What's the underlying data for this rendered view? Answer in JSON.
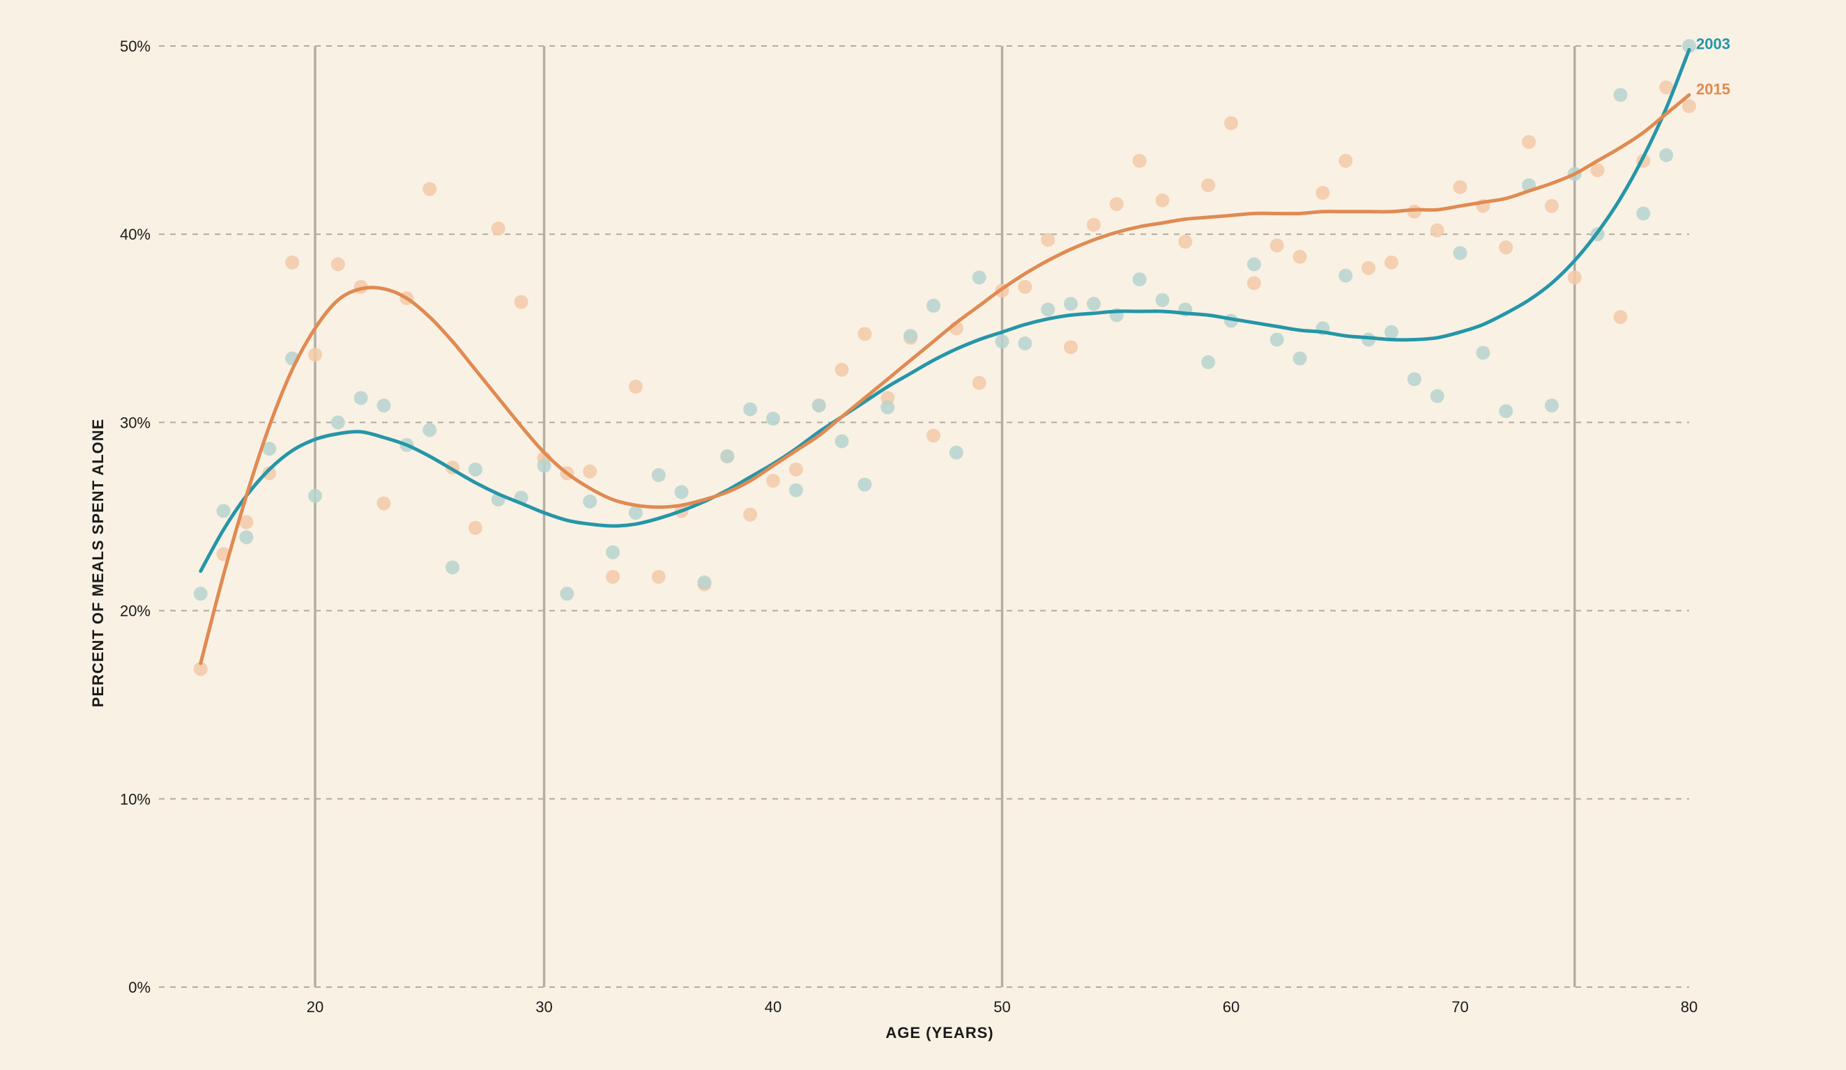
{
  "chart_data": {
    "type": "scatter",
    "title": "",
    "xlabel": "AGE (YEARS)",
    "ylabel": "PERCENT OF MEALS SPENT ALONE",
    "xlim": [
      12.5,
      80
    ],
    "ylim": [
      0,
      50
    ],
    "x_ticks": [
      20,
      30,
      40,
      50,
      60,
      70,
      80
    ],
    "y_ticks": [
      0,
      10,
      20,
      30,
      40,
      50
    ],
    "y_tick_labels": [
      "0%",
      "10%",
      "20%",
      "30%",
      "40%",
      "50%"
    ],
    "reference_lines_x": [
      20,
      30,
      50,
      75
    ],
    "grid": "horizontal dashed",
    "legend": "direct labels at right end of lines",
    "series": [
      {
        "name": "2003",
        "color": "#2596a8",
        "point_color": "#b7d3cf",
        "points": [
          [
            15,
            20.9
          ],
          [
            16,
            25.3
          ],
          [
            17,
            23.9
          ],
          [
            18,
            28.6
          ],
          [
            19,
            33.4
          ],
          [
            20,
            26.1
          ],
          [
            21,
            30.0
          ],
          [
            22,
            31.3
          ],
          [
            23,
            30.9
          ],
          [
            24,
            28.8
          ],
          [
            25,
            29.6
          ],
          [
            26,
            22.3
          ],
          [
            27,
            27.5
          ],
          [
            28,
            25.9
          ],
          [
            29,
            26.0
          ],
          [
            30,
            27.7
          ],
          [
            31,
            20.9
          ],
          [
            32,
            25.8
          ],
          [
            33,
            23.1
          ],
          [
            34,
            25.2
          ],
          [
            35,
            27.2
          ],
          [
            36,
            26.3
          ],
          [
            37,
            21.5
          ],
          [
            38,
            28.2
          ],
          [
            39,
            30.7
          ],
          [
            40,
            30.2
          ],
          [
            41,
            26.4
          ],
          [
            42,
            30.9
          ],
          [
            43,
            29.0
          ],
          [
            44,
            26.7
          ],
          [
            45,
            30.8
          ],
          [
            46,
            34.6
          ],
          [
            47,
            36.2
          ],
          [
            48,
            28.4
          ],
          [
            49,
            37.7
          ],
          [
            50,
            34.3
          ],
          [
            51,
            34.2
          ],
          [
            52,
            36.0
          ],
          [
            53,
            36.3
          ],
          [
            54,
            36.3
          ],
          [
            55,
            35.7
          ],
          [
            56,
            37.6
          ],
          [
            57,
            36.5
          ],
          [
            58,
            36.0
          ],
          [
            59,
            33.2
          ],
          [
            60,
            35.4
          ],
          [
            61,
            38.4
          ],
          [
            62,
            34.4
          ],
          [
            63,
            33.4
          ],
          [
            64,
            35.0
          ],
          [
            65,
            37.8
          ],
          [
            66,
            34.4
          ],
          [
            67,
            34.8
          ],
          [
            68,
            32.3
          ],
          [
            69,
            31.4
          ],
          [
            70,
            39.0
          ],
          [
            71,
            33.7
          ],
          [
            72,
            30.6
          ],
          [
            73,
            42.6
          ],
          [
            74,
            30.9
          ],
          [
            75,
            43.2
          ],
          [
            76,
            40.0
          ],
          [
            77,
            47.4
          ],
          [
            78,
            41.1
          ],
          [
            79,
            44.2
          ],
          [
            80,
            50.0
          ]
        ],
        "trend": [
          [
            15,
            22.1
          ],
          [
            16,
            24.3
          ],
          [
            17,
            26.1
          ],
          [
            18,
            27.5
          ],
          [
            19,
            28.5
          ],
          [
            20,
            29.1
          ],
          [
            21,
            29.4
          ],
          [
            22,
            29.5
          ],
          [
            23,
            29.2
          ],
          [
            24,
            28.8
          ],
          [
            25,
            28.2
          ],
          [
            26,
            27.5
          ],
          [
            27,
            26.8
          ],
          [
            28,
            26.2
          ],
          [
            29,
            25.7
          ],
          [
            30,
            25.2
          ],
          [
            31,
            24.8
          ],
          [
            32,
            24.6
          ],
          [
            33,
            24.5
          ],
          [
            34,
            24.6
          ],
          [
            35,
            24.9
          ],
          [
            36,
            25.3
          ],
          [
            37,
            25.8
          ],
          [
            38,
            26.4
          ],
          [
            39,
            27.1
          ],
          [
            40,
            27.8
          ],
          [
            41,
            28.6
          ],
          [
            42,
            29.5
          ],
          [
            43,
            30.3
          ],
          [
            44,
            31.1
          ],
          [
            45,
            31.9
          ],
          [
            46,
            32.6
          ],
          [
            47,
            33.3
          ],
          [
            48,
            33.9
          ],
          [
            49,
            34.4
          ],
          [
            50,
            34.8
          ],
          [
            51,
            35.2
          ],
          [
            52,
            35.5
          ],
          [
            53,
            35.7
          ],
          [
            54,
            35.8
          ],
          [
            55,
            35.9
          ],
          [
            56,
            35.9
          ],
          [
            57,
            35.9
          ],
          [
            58,
            35.8
          ],
          [
            59,
            35.7
          ],
          [
            60,
            35.5
          ],
          [
            61,
            35.3
          ],
          [
            62,
            35.1
          ],
          [
            63,
            34.9
          ],
          [
            64,
            34.8
          ],
          [
            65,
            34.6
          ],
          [
            66,
            34.5
          ],
          [
            67,
            34.4
          ],
          [
            68,
            34.4
          ],
          [
            69,
            34.5
          ],
          [
            70,
            34.8
          ],
          [
            71,
            35.2
          ],
          [
            72,
            35.8
          ],
          [
            73,
            36.5
          ],
          [
            74,
            37.4
          ],
          [
            75,
            38.6
          ],
          [
            76,
            40.1
          ],
          [
            77,
            41.9
          ],
          [
            78,
            44.1
          ],
          [
            79,
            46.7
          ],
          [
            80,
            49.8
          ]
        ]
      },
      {
        "name": "2015",
        "color": "#e08a52",
        "point_color": "#f3c9a8",
        "points": [
          [
            15,
            16.9
          ],
          [
            16,
            23.0
          ],
          [
            17,
            24.7
          ],
          [
            18,
            27.3
          ],
          [
            19,
            38.5
          ],
          [
            20,
            33.6
          ],
          [
            21,
            38.4
          ],
          [
            22,
            37.2
          ],
          [
            23,
            25.7
          ],
          [
            24,
            36.6
          ],
          [
            25,
            42.4
          ],
          [
            26,
            27.6
          ],
          [
            27,
            24.4
          ],
          [
            28,
            40.3
          ],
          [
            29,
            36.4
          ],
          [
            30,
            28.1
          ],
          [
            31,
            27.3
          ],
          [
            32,
            27.4
          ],
          [
            33,
            21.8
          ],
          [
            34,
            31.9
          ],
          [
            35,
            21.8
          ],
          [
            36,
            25.3
          ],
          [
            37,
            21.4
          ],
          [
            38,
            28.2
          ],
          [
            39,
            25.1
          ],
          [
            40,
            26.9
          ],
          [
            41,
            27.5
          ],
          [
            42,
            30.9
          ],
          [
            43,
            32.8
          ],
          [
            44,
            34.7
          ],
          [
            45,
            31.3
          ],
          [
            46,
            34.5
          ],
          [
            47,
            29.3
          ],
          [
            48,
            35.0
          ],
          [
            49,
            32.1
          ],
          [
            50,
            37.0
          ],
          [
            51,
            37.2
          ],
          [
            52,
            39.7
          ],
          [
            53,
            34.0
          ],
          [
            54,
            40.5
          ],
          [
            55,
            41.6
          ],
          [
            56,
            43.9
          ],
          [
            57,
            41.8
          ],
          [
            58,
            39.6
          ],
          [
            59,
            42.6
          ],
          [
            60,
            45.9
          ],
          [
            61,
            37.4
          ],
          [
            62,
            39.4
          ],
          [
            63,
            38.8
          ],
          [
            64,
            42.2
          ],
          [
            65,
            43.9
          ],
          [
            66,
            38.2
          ],
          [
            67,
            38.5
          ],
          [
            68,
            41.2
          ],
          [
            69,
            40.2
          ],
          [
            70,
            42.5
          ],
          [
            71,
            41.5
          ],
          [
            72,
            39.3
          ],
          [
            73,
            44.9
          ],
          [
            74,
            41.5
          ],
          [
            75,
            37.7
          ],
          [
            76,
            43.4
          ],
          [
            77,
            35.6
          ],
          [
            78,
            43.9
          ],
          [
            79,
            47.8
          ],
          [
            80,
            46.8
          ]
        ],
        "trend": [
          [
            15,
            17.2
          ],
          [
            16,
            21.9
          ],
          [
            17,
            26.1
          ],
          [
            18,
            29.8
          ],
          [
            19,
            32.8
          ],
          [
            20,
            35.0
          ],
          [
            21,
            36.5
          ],
          [
            22,
            37.1
          ],
          [
            23,
            37.1
          ],
          [
            24,
            36.6
          ],
          [
            25,
            35.6
          ],
          [
            26,
            34.3
          ],
          [
            27,
            32.8
          ],
          [
            28,
            31.3
          ],
          [
            29,
            29.8
          ],
          [
            30,
            28.4
          ],
          [
            31,
            27.3
          ],
          [
            32,
            26.5
          ],
          [
            33,
            25.9
          ],
          [
            34,
            25.6
          ],
          [
            35,
            25.5
          ],
          [
            36,
            25.6
          ],
          [
            37,
            25.9
          ],
          [
            38,
            26.3
          ],
          [
            39,
            26.9
          ],
          [
            40,
            27.7
          ],
          [
            41,
            28.5
          ],
          [
            42,
            29.3
          ],
          [
            43,
            30.3
          ],
          [
            44,
            31.3
          ],
          [
            45,
            32.3
          ],
          [
            46,
            33.3
          ],
          [
            47,
            34.3
          ],
          [
            48,
            35.3
          ],
          [
            49,
            36.2
          ],
          [
            50,
            37.1
          ],
          [
            51,
            37.9
          ],
          [
            52,
            38.6
          ],
          [
            53,
            39.2
          ],
          [
            54,
            39.7
          ],
          [
            55,
            40.1
          ],
          [
            56,
            40.4
          ],
          [
            57,
            40.6
          ],
          [
            58,
            40.8
          ],
          [
            59,
            40.9
          ],
          [
            60,
            41.0
          ],
          [
            61,
            41.1
          ],
          [
            62,
            41.1
          ],
          [
            63,
            41.1
          ],
          [
            64,
            41.2
          ],
          [
            65,
            41.2
          ],
          [
            66,
            41.2
          ],
          [
            67,
            41.2
          ],
          [
            68,
            41.3
          ],
          [
            69,
            41.3
          ],
          [
            70,
            41.5
          ],
          [
            71,
            41.7
          ],
          [
            72,
            41.9
          ],
          [
            73,
            42.3
          ],
          [
            74,
            42.7
          ],
          [
            75,
            43.2
          ],
          [
            76,
            43.9
          ],
          [
            77,
            44.6
          ],
          [
            78,
            45.4
          ],
          [
            79,
            46.4
          ],
          [
            80,
            47.4
          ]
        ]
      }
    ]
  }
}
